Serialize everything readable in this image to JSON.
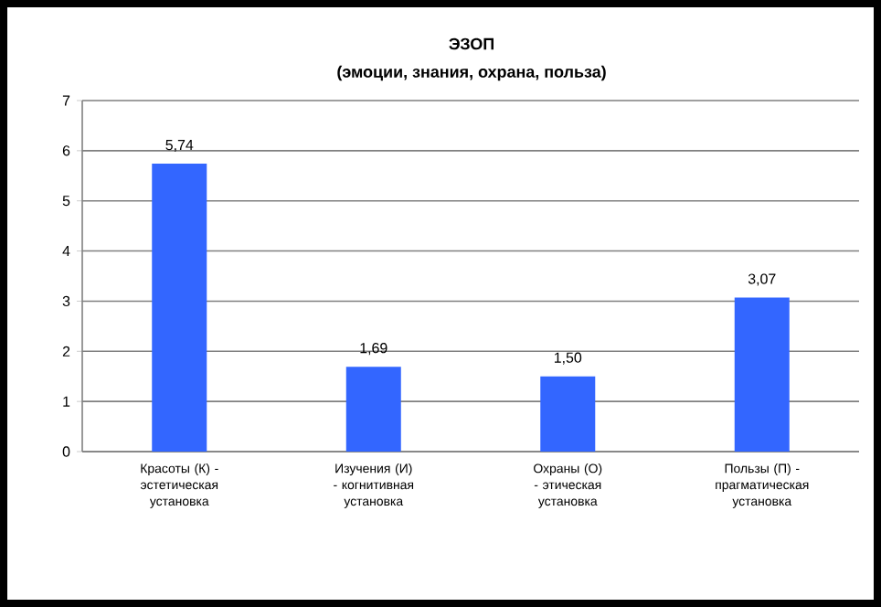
{
  "chart_data": {
    "type": "bar",
    "title": "ЭЗОП",
    "subtitle": "(эмоции, знания, охрана, польза)",
    "categories": [
      "Красоты (К) - эстетическая установка",
      "Изучения (И) - когнитивная установка",
      "Охраны (О) - этическая установка",
      "Пользы (П) - прагматическая установка"
    ],
    "values": [
      5.74,
      1.69,
      1.5,
      3.07
    ],
    "value_labels": [
      "5,74",
      "1,69",
      "1,50",
      "3,07"
    ],
    "color": "#3366ff",
    "ylim": [
      0,
      7
    ],
    "yticks": [
      0,
      1,
      2,
      3,
      4,
      5,
      6,
      7
    ],
    "grid": "y"
  }
}
